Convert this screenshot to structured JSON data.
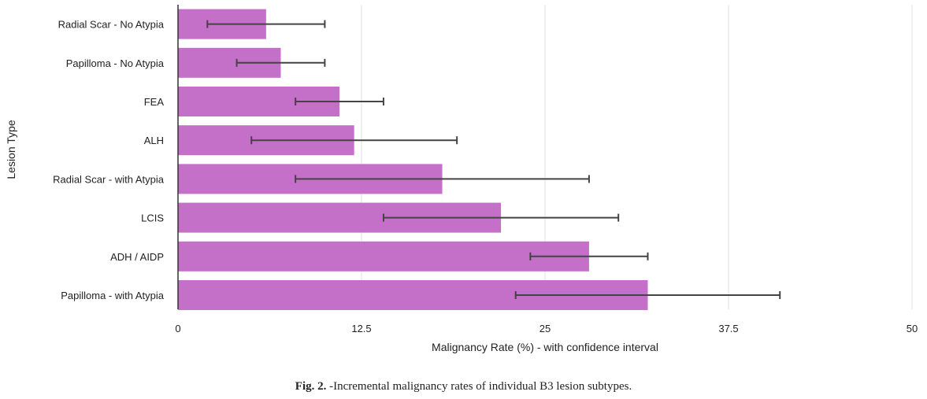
{
  "chart_data": {
    "type": "bar",
    "orientation": "horizontal",
    "categories": [
      "Radial Scar - No Atypia",
      "Papilloma - No Atypia",
      "FEA",
      "ALH",
      "Radial Scar - with Atypia",
      "LCIS",
      "ADH / AIDP",
      "Papilloma - with Atypia"
    ],
    "values": [
      6,
      7,
      11,
      12,
      18,
      22,
      28,
      32
    ],
    "ci_low": [
      2,
      4,
      8,
      5,
      8,
      14,
      24,
      23
    ],
    "ci_high": [
      10,
      10,
      14,
      19,
      28,
      30,
      32,
      41
    ],
    "xlabel": "Malignancy Rate (%) - with confidence interval",
    "ylabel": "Lesion Type",
    "xlim": [
      0,
      50
    ],
    "xticks": [
      "0",
      "12.5",
      "25",
      "37.5",
      "50"
    ],
    "grid": "vertical",
    "bar_color": "#c46fc8",
    "errorbar_color": "#444444"
  },
  "caption": {
    "label": "Fig. 2.",
    "text": " -Incremental malignancy rates of individual B3 lesion subtypes."
  }
}
